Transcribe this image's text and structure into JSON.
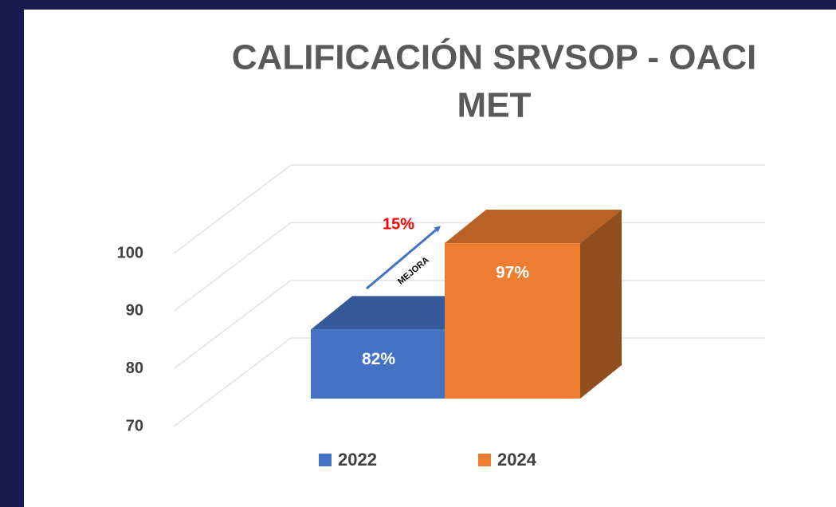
{
  "chart_data": {
    "type": "bar3d",
    "title": [
      "CALIFICACIÓN SRVSOP - OACI",
      "MET"
    ],
    "categories": [
      null
    ],
    "series": [
      {
        "name": "2022",
        "color": "#4472c4",
        "values": [
          82
        ],
        "value_labels": [
          "82%"
        ]
      },
      {
        "name": "2024",
        "color": "#ed7d31",
        "values": [
          97
        ],
        "value_labels": [
          "97%"
        ]
      }
    ],
    "ylim": [
      70,
      100
    ],
    "yticks": [
      70,
      80,
      90,
      100
    ],
    "grid": true,
    "annotations": [
      "15%",
      "MEJORA"
    ],
    "legend": "bottom"
  }
}
